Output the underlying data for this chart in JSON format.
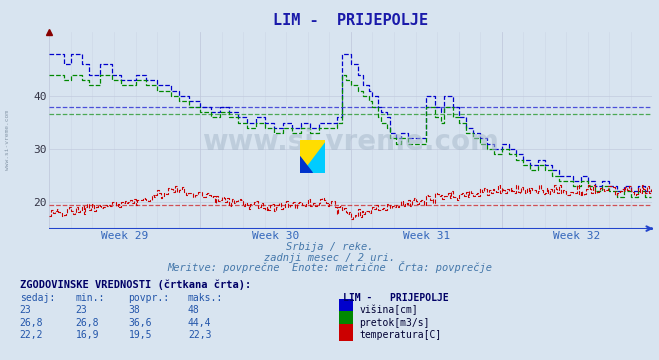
{
  "title": "LIM -  PRIJEPOLJE",
  "title_color": "#1a1aaa",
  "bg_color": "#d8e4f0",
  "plot_bg_color": "#d8e4f0",
  "xlabel_weeks": [
    "Week 29",
    "Week 30",
    "Week 31",
    "Week 32"
  ],
  "ylim": [
    15,
    52
  ],
  "xlim": [
    0,
    336
  ],
  "avg_visina": 38,
  "avg_pretok": 36.6,
  "avg_temp": 19.5,
  "color_visina": "#0000cc",
  "color_pretok": "#008800",
  "color_temp": "#cc0000",
  "color_axis": "#2244cc",
  "color_hgrid": "#c0c8dc",
  "color_vgrid": "#c0c8dc",
  "subtitle1": "Srbija / reke.",
  "subtitle2": "zadnji mesec / 2 uri.",
  "subtitle3": "Meritve: povprečne  Enote: metrične  Črta: povprečje",
  "subtitle_color": "#4477aa",
  "table_header": "ZGODOVINSKE VREDNOSTI (črtkana črta):",
  "table_cols": [
    "sedaj:",
    "min.:",
    "povpr.:",
    "maks.:"
  ],
  "table_visina": [
    23,
    23,
    38,
    48
  ],
  "table_pretok": [
    "26,8",
    "26,8",
    "36,6",
    "44,4"
  ],
  "table_temp": [
    "22,2",
    "16,9",
    "19,5",
    "22,3"
  ],
  "legend_label_visina": "višina[cm]",
  "legend_label_pretok": "pretok[m3/s]",
  "legend_label_temp": "temperatura[C]",
  "legend_title": "LIM -   PRIJEPOLJE",
  "watermark": "www.si-vreme.com",
  "left_label": "www.si-vreme.com"
}
